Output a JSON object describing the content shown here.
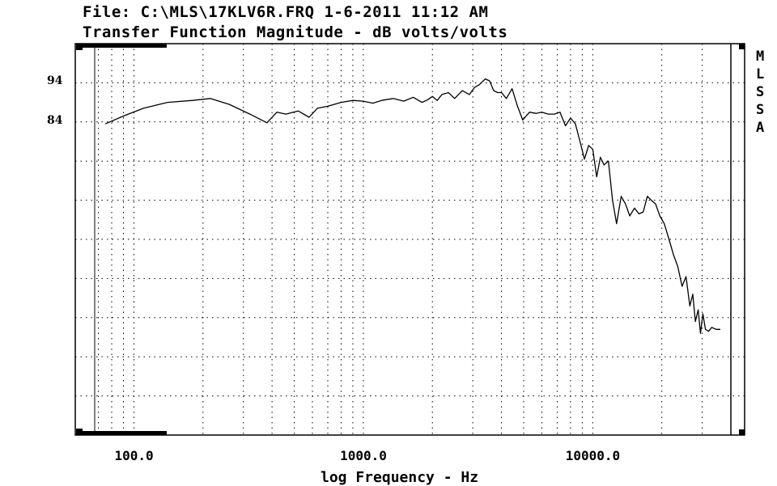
{
  "header": {
    "file_line": "File: C:\\MLS\\17KLV6R.FRQ 1-6-2011 11:12 AM",
    "title_line": "Transfer Function Magnitude - dB volts/volts"
  },
  "side_label": [
    "M",
    "L",
    "S",
    "S",
    "A"
  ],
  "chart_data": {
    "type": "line",
    "title": "Transfer Function Magnitude - dB volts/volts",
    "xlabel": "log Frequency - Hz",
    "ylabel": "",
    "x_scale": "log",
    "xlim": [
      68,
      40000
    ],
    "ylim": [
      4,
      104
    ],
    "grid": true,
    "x_tick_labels": [
      {
        "value": 100,
        "label": "100.0"
      },
      {
        "value": 1000,
        "label": "1000.0"
      },
      {
        "value": 10000,
        "label": "10000.0"
      }
    ],
    "y_tick_labels": [
      {
        "value": 94,
        "label": "94"
      },
      {
        "value": 84,
        "label": "84"
      }
    ],
    "series": [
      {
        "x": [
          75,
          90,
          110,
          140,
          180,
          215,
          260,
          320,
          380,
          420,
          460,
          520,
          580,
          630,
          700,
          800,
          900,
          1000,
          1100,
          1200,
          1350,
          1500,
          1650,
          1800,
          1900,
          2000,
          2100,
          2200,
          2350,
          2500,
          2700,
          2900,
          3050,
          3200,
          3400,
          3550,
          3700,
          3850,
          4000,
          4200,
          4450,
          4700,
          4950,
          5300,
          5650,
          6000,
          6400,
          6800,
          7200,
          7600,
          8000,
          8400,
          8800,
          9200,
          9600,
          10000,
          10400,
          10800,
          11200,
          11700,
          12200,
          12700,
          13300,
          13900,
          14500,
          15200,
          15900,
          16600,
          17300,
          18000,
          18800,
          19600,
          20500,
          21500,
          22500,
          23500,
          24500,
          25500,
          26500,
          27300,
          28000,
          28800,
          29500,
          30200,
          31000,
          32000,
          33000,
          34500,
          36000
        ],
        "y": [
          83.5,
          85.5,
          87.5,
          89.0,
          89.5,
          90.0,
          88.5,
          86.0,
          83.8,
          86.5,
          86.0,
          86.8,
          85.2,
          87.5,
          88.0,
          89.0,
          89.5,
          89.3,
          88.8,
          89.5,
          90.0,
          89.3,
          90.3,
          89.0,
          89.6,
          90.5,
          89.5,
          91.0,
          91.5,
          90.0,
          92.0,
          91.0,
          92.8,
          93.5,
          95.0,
          94.5,
          92.0,
          91.5,
          91.5,
          90.0,
          92.5,
          88.0,
          84.5,
          86.5,
          86.2,
          86.5,
          86.0,
          86.0,
          86.5,
          83.0,
          85.0,
          83.5,
          79.0,
          74.5,
          78.0,
          77.0,
          70.0,
          75.0,
          73.0,
          74.0,
          64.0,
          58.0,
          65.0,
          63.0,
          60.0,
          62.0,
          60.5,
          61.0,
          65.0,
          64.0,
          63.0,
          60.0,
          58.0,
          54.0,
          50.0,
          47.0,
          42.0,
          44.5,
          37.0,
          40.0,
          33.0,
          36.0,
          30.0,
          35.0,
          31.0,
          30.5,
          31.5,
          31.0,
          31.0
        ]
      }
    ]
  }
}
